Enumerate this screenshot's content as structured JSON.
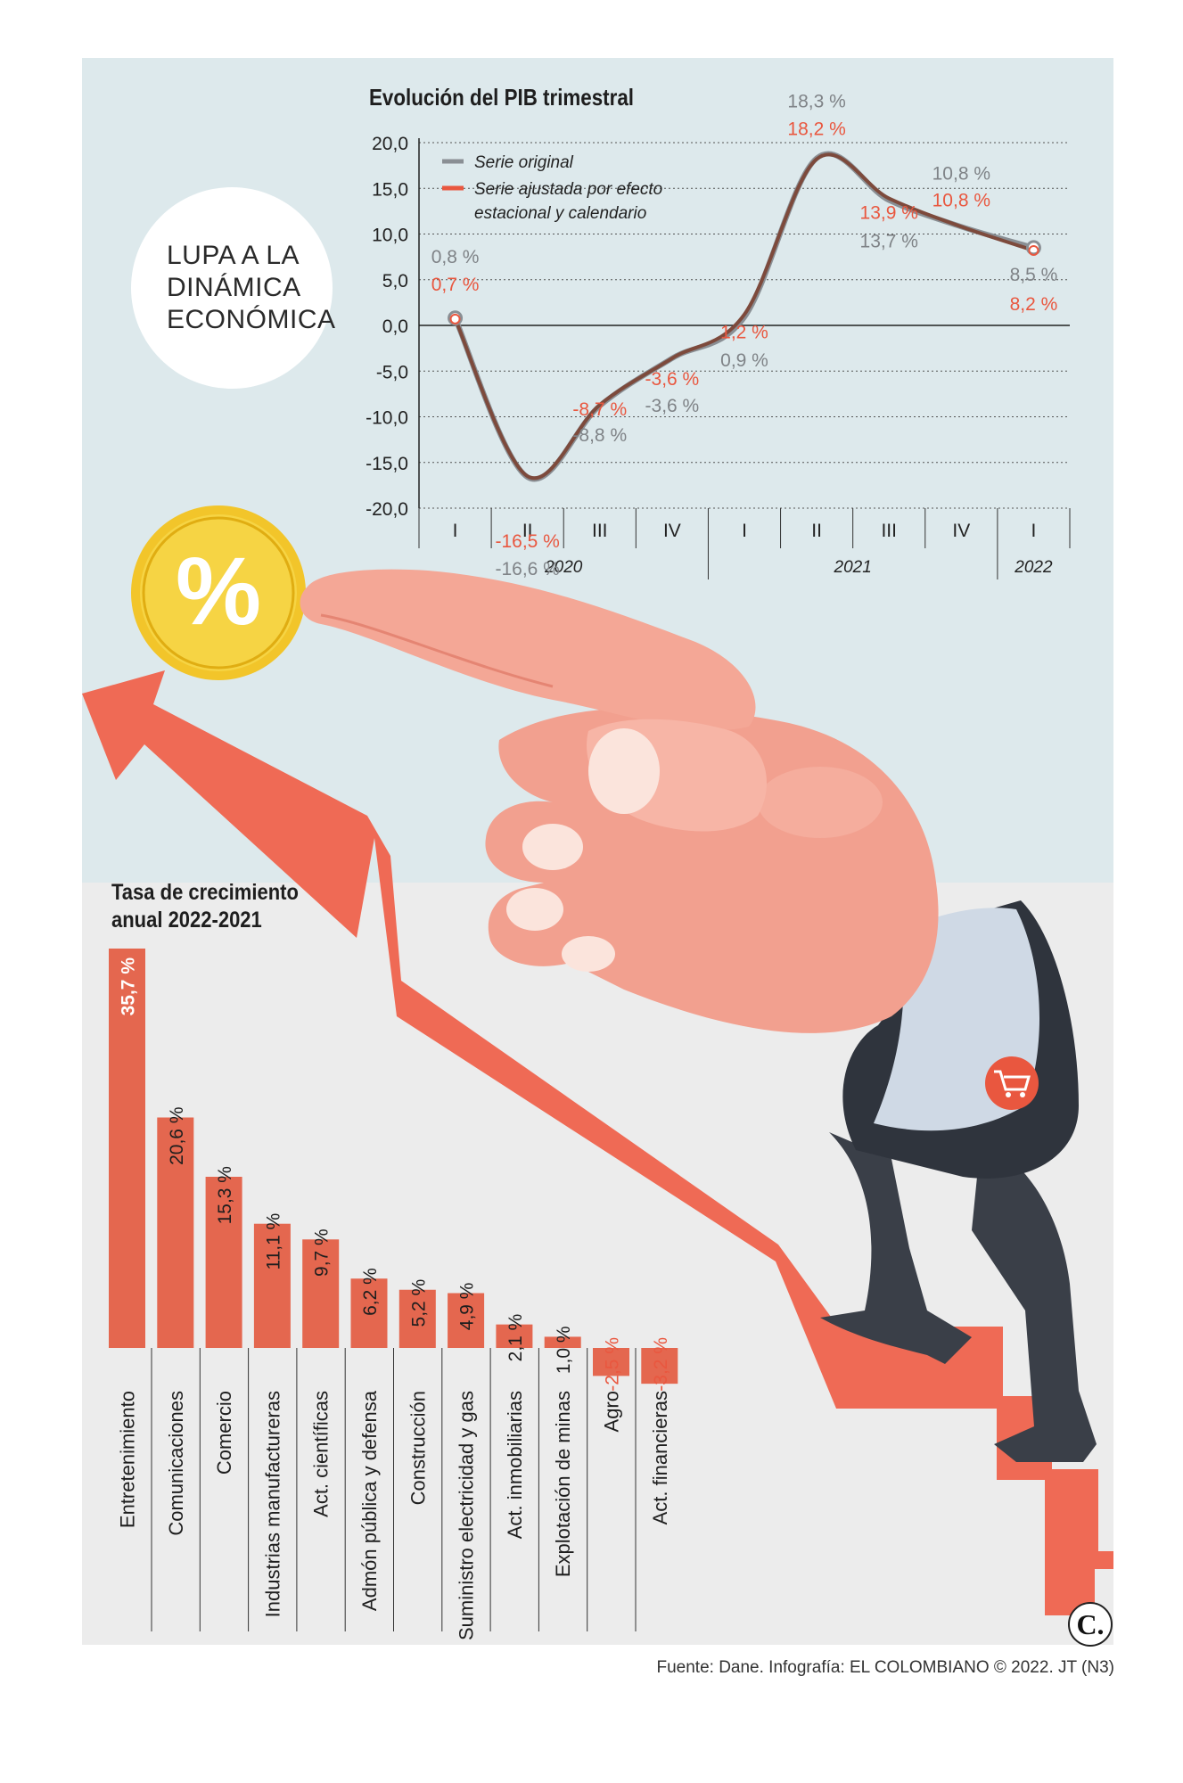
{
  "headline": "LUPA A LA DINÁMICA ECONÓMICA",
  "headline_lines": [
    "LUPA A LA",
    "DINÁMICA",
    "ECONÓMICA"
  ],
  "colors": {
    "background": "#dde9ec",
    "lower_background": "#ececec",
    "accent": "#ef6a55",
    "bar": "#e4674f",
    "series_original": "#8a8f94",
    "series_adjusted": "#7d4a3c",
    "label_original": "#7f8387",
    "label_adjusted": "#e9573f",
    "coin": "#f2c52a",
    "text": "#1e1e1e"
  },
  "icons": [
    "percent-coin-icon",
    "shopping-cart-icon",
    "pointing-hand-illustration",
    "staircase-arrow-illustration"
  ],
  "chart_data": [
    {
      "type": "line",
      "title": "Evolución del PIB trimestral",
      "categories": [
        "I",
        "II",
        "III",
        "IV",
        "I",
        "II",
        "III",
        "IV",
        "I"
      ],
      "year_groups": [
        {
          "label": "2020",
          "span": 4
        },
        {
          "label": "2021",
          "span": 4
        },
        {
          "label": "2022",
          "span": 1
        }
      ],
      "yticks": [
        "20,0",
        "15,0",
        "10,0",
        "5,0",
        "0,0",
        "-5,0",
        "-10,0",
        "-15,0",
        "-20,0"
      ],
      "ylim": [
        -20,
        20
      ],
      "grid": true,
      "legend_position": "top-left",
      "series": [
        {
          "name": "Serie original",
          "values": [
            0.8,
            -16.6,
            -8.8,
            -3.6,
            0.9,
            18.3,
            13.7,
            10.8,
            8.5
          ],
          "labels": [
            "0,8 %",
            "-16,6 %",
            "-8,8 %",
            "-3,6 %",
            "0,9 %",
            "18,3 %",
            "13,7 %",
            "10,8 %",
            "8,5 %"
          ]
        },
        {
          "name": "Serie ajustada por efecto estacional y calendario",
          "legend_lines": [
            "Serie ajustada por efecto",
            "estacional y calendario"
          ],
          "values": [
            0.7,
            -16.5,
            -8.7,
            -3.6,
            1.2,
            18.2,
            13.9,
            10.8,
            8.2
          ],
          "labels": [
            "0,7 %",
            "-16,5 %",
            "-8,7 %",
            "-3,6 %",
            "1,2 %",
            "18,2 %",
            "13,9 %",
            "10,8 %",
            "8,2 %"
          ]
        }
      ]
    },
    {
      "type": "bar",
      "title": "Tasa de crecimiento anual 2022-2021",
      "title_lines": [
        "Tasa de crecimiento",
        "anual 2022-2021"
      ],
      "categories": [
        "Entretenimiento",
        "Comunicaciones",
        "Comercio",
        "Industrias manufactureras",
        "Act.  científicas",
        "Admón pública y defensa",
        "Construcción",
        "Suministro electricidad y gas",
        "Act. inmobiliarias",
        "Explotación de minas",
        "Agro",
        "Act. financieras"
      ],
      "values": [
        35.7,
        20.6,
        15.3,
        11.1,
        9.7,
        6.2,
        5.2,
        4.9,
        2.1,
        1.0,
        -2.5,
        -3.2
      ],
      "labels": [
        "35,7 %",
        "20,6 %",
        "15,3 %",
        "11,1 %",
        "9,7 %",
        "6,2 %",
        "5,2 %",
        "4,9 %",
        "2,1 %",
        "1,0 %",
        "-2,5 %",
        "-3,2 %"
      ]
    }
  ],
  "source": "Fuente: Dane. Infografía: EL COLOMBIANO © 2022. JT (N3)",
  "logo_text": "C."
}
